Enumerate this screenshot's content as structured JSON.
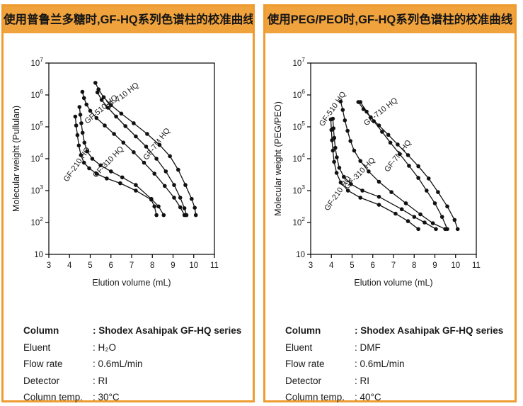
{
  "colors": {
    "accent": "#f0a23c",
    "panel_border": "#ee9c2f",
    "curve": "#111111",
    "text": "#1a1a1a"
  },
  "panels": [
    {
      "header": "使用普鲁兰多糖时,GF-HQ系列色谱柱的校准曲线",
      "info_rows": [
        {
          "label": "Column",
          "value": ": Shodex Asahipak GF-HQ series"
        },
        {
          "label": "Eluent",
          "value": ": H₂O"
        },
        {
          "label": "Flow rate",
          "value": ": 0.6mL/min"
        },
        {
          "label": "Detector",
          "value": ": RI"
        },
        {
          "label": "Column temp.",
          "value": ": 30°C"
        }
      ]
    },
    {
      "header": "使用PEG/PEO时,GF-HQ系列色谱柱的校准曲线",
      "info_rows": [
        {
          "label": "Column",
          "value": ": Shodex Asahipak GF-HQ series"
        },
        {
          "label": "Eluent",
          "value": ": DMF"
        },
        {
          "label": "Flow rate",
          "value": ": 0.6mL/min"
        },
        {
          "label": "Detector",
          "value": ": RI"
        },
        {
          "label": "Column temp.",
          "value": ": 40°C"
        }
      ]
    }
  ],
  "chart_data": [
    {
      "type": "line",
      "title": "使用普鲁兰多糖时,GF-HQ系列色谱柱的校准曲线",
      "xlabel": "Elution volume (mL)",
      "ylabel": "Molecular weight (Pullulan)",
      "xlim": [
        3,
        11
      ],
      "ylim_log": [
        1,
        7
      ],
      "x_ticks": [
        3,
        4,
        5,
        6,
        7,
        8,
        9,
        10,
        11
      ],
      "y_tick_exponents": [
        7,
        6,
        5,
        4,
        3,
        2,
        1
      ],
      "grid": false,
      "marker": "filled-circle",
      "legend_position": "inline-rotated-labels",
      "series": [
        {
          "name": "GF-210 HQ",
          "label_at": [
            4.45,
            6000
          ],
          "label_rot": -55,
          "points": [
            [
              4.28,
              210000
            ],
            [
              4.32,
              110000
            ],
            [
              4.38,
              55000
            ],
            [
              4.45,
              26000
            ],
            [
              4.55,
              13000
            ],
            [
              4.7,
              7500
            ],
            [
              4.95,
              5000
            ],
            [
              5.3,
              3400
            ],
            [
              5.8,
              2400
            ],
            [
              6.45,
              1700
            ],
            [
              7.2,
              1000
            ],
            [
              7.95,
              520
            ],
            [
              8.1,
              320
            ],
            [
              8.2,
              170
            ]
          ]
        },
        {
          "name": "GF-310 HQ",
          "label_at": [
            5.95,
            7000
          ],
          "label_rot": -46,
          "points": [
            [
              4.48,
              420000
            ],
            [
              4.52,
              240000
            ],
            [
              4.57,
              130000
            ],
            [
              4.63,
              65000
            ],
            [
              4.72,
              32000
            ],
            [
              4.85,
              17000
            ],
            [
              5.1,
              10000
            ],
            [
              5.5,
              6200
            ],
            [
              6.0,
              4000
            ],
            [
              6.55,
              2600
            ],
            [
              7.2,
              1500
            ],
            [
              7.95,
              550
            ],
            [
              8.3,
              320
            ],
            [
              8.55,
              170
            ]
          ]
        },
        {
          "name": "GF-510 HQ",
          "label_at": [
            5.6,
            310000
          ],
          "label_rot": -40,
          "points": [
            [
              4.62,
              1250000
            ],
            [
              4.7,
              800000
            ],
            [
              4.82,
              500000
            ],
            [
              5.0,
              320000
            ],
            [
              5.3,
              190000
            ],
            [
              5.7,
              110000
            ],
            [
              6.15,
              60000
            ],
            [
              6.6,
              32000
            ],
            [
              7.1,
              16000
            ],
            [
              7.6,
              7500
            ],
            [
              8.1,
              3400
            ],
            [
              8.6,
              1400
            ],
            [
              9.05,
              600
            ],
            [
              9.35,
              300
            ],
            [
              9.55,
              170
            ]
          ]
        },
        {
          "name": "GF-7M HQ",
          "label_at": [
            8.3,
            26000
          ],
          "label_rot": -52,
          "points": [
            [
              5.35,
              1200000
            ],
            [
              5.55,
              700000
            ],
            [
              5.85,
              400000
            ],
            [
              6.25,
              210000
            ],
            [
              6.7,
              105000
            ],
            [
              7.2,
              50000
            ],
            [
              7.7,
              24000
            ],
            [
              8.2,
              10000
            ],
            [
              8.65,
              4000
            ],
            [
              9.05,
              1500
            ],
            [
              9.35,
              600
            ],
            [
              9.55,
              280
            ],
            [
              9.65,
              170
            ]
          ]
        },
        {
          "name": "GF-710 HQ",
          "label_at": [
            6.6,
            780000
          ],
          "label_rot": -38,
          "points": [
            [
              5.25,
              2400000
            ],
            [
              5.4,
              1500000
            ],
            [
              5.65,
              850000
            ],
            [
              6.0,
              480000
            ],
            [
              6.5,
              260000
            ],
            [
              7.1,
              130000
            ],
            [
              7.75,
              60000
            ],
            [
              8.35,
              27000
            ],
            [
              8.85,
              12000
            ],
            [
              9.25,
              4500
            ],
            [
              9.6,
              1500
            ],
            [
              9.9,
              550
            ],
            [
              10.05,
              290
            ],
            [
              10.1,
              170
            ]
          ]
        }
      ]
    },
    {
      "type": "line",
      "title": "使用PEG/PEO时,GF-HQ系列色谱柱的校准曲线",
      "xlabel": "Elution volume (mL)",
      "ylabel": "Molecular weight (PEG/PEO)",
      "xlim": [
        3,
        11
      ],
      "ylim_log": [
        1,
        7
      ],
      "x_ticks": [
        3,
        4,
        5,
        6,
        7,
        8,
        9,
        10,
        11
      ],
      "y_tick_exponents": [
        7,
        6,
        5,
        4,
        3,
        2,
        1
      ],
      "grid": false,
      "marker": "filled-circle",
      "legend_position": "inline-rotated-labels",
      "series": [
        {
          "name": "GF-210 HQ",
          "label_at": [
            4.4,
            740
          ],
          "label_rot": -55,
          "points": [
            [
              3.97,
              170000
            ],
            [
              4.0,
              80000
            ],
            [
              4.03,
              38000
            ],
            [
              4.07,
              18000
            ],
            [
              4.13,
              8000
            ],
            [
              4.25,
              3600
            ],
            [
              4.45,
              1800
            ],
            [
              4.8,
              1000
            ],
            [
              5.4,
              600
            ],
            [
              6.3,
              360
            ],
            [
              7.1,
              190
            ],
            [
              7.7,
              110
            ],
            [
              8.2,
              62
            ]
          ]
        },
        {
          "name": "GF-310 HQ",
          "label_at": [
            5.45,
            3100
          ],
          "label_rot": -46,
          "points": [
            [
              4.07,
              180000
            ],
            [
              4.1,
              90000
            ],
            [
              4.14,
              45000
            ],
            [
              4.19,
              22000
            ],
            [
              4.26,
              11000
            ],
            [
              4.38,
              5200
            ],
            [
              4.6,
              2700
            ],
            [
              4.95,
              1600
            ],
            [
              5.5,
              1000
            ],
            [
              6.3,
              640
            ],
            [
              7.4,
              260
            ],
            [
              8.0,
              150
            ],
            [
              8.5,
              100
            ],
            [
              9.05,
              62
            ]
          ]
        },
        {
          "name": "GF-510 HQ",
          "label_at": [
            4.15,
            330000
          ],
          "label_rot": -55,
          "points": [
            [
              4.45,
              620000
            ],
            [
              4.55,
              340000
            ],
            [
              4.65,
              160000
            ],
            [
              4.78,
              75000
            ],
            [
              4.92,
              36000
            ],
            [
              5.1,
              18000
            ],
            [
              5.4,
              8500
            ],
            [
              5.8,
              4000
            ],
            [
              6.3,
              1900
            ],
            [
              6.9,
              900
            ],
            [
              7.6,
              400
            ],
            [
              8.3,
              180
            ],
            [
              8.9,
              95
            ],
            [
              9.5,
              62
            ]
          ]
        },
        {
          "name": "GF-7M HQ",
          "label_at": [
            7.3,
            11000
          ],
          "label_rot": -52,
          "points": [
            [
              5.4,
              600000
            ],
            [
              5.7,
              300000
            ],
            [
              6.05,
              150000
            ],
            [
              6.45,
              70000
            ],
            [
              6.85,
              32000
            ],
            [
              7.3,
              14000
            ],
            [
              7.75,
              6000
            ],
            [
              8.2,
              2500
            ],
            [
              8.6,
              1000
            ],
            [
              9.0,
              400
            ],
            [
              9.35,
              150
            ],
            [
              9.6,
              62
            ]
          ]
        },
        {
          "name": "GF-710 HQ",
          "label_at": [
            6.45,
            260000
          ],
          "label_rot": -38,
          "points": [
            [
              5.3,
              600000
            ],
            [
              5.55,
              360000
            ],
            [
              5.9,
              200000
            ],
            [
              6.3,
              110000
            ],
            [
              6.75,
              56000
            ],
            [
              7.2,
              28000
            ],
            [
              7.7,
              13000
            ],
            [
              8.2,
              5800
            ],
            [
              8.7,
              2400
            ],
            [
              9.15,
              900
            ],
            [
              9.6,
              320
            ],
            [
              9.95,
              120
            ],
            [
              10.1,
              62
            ]
          ]
        }
      ]
    }
  ]
}
